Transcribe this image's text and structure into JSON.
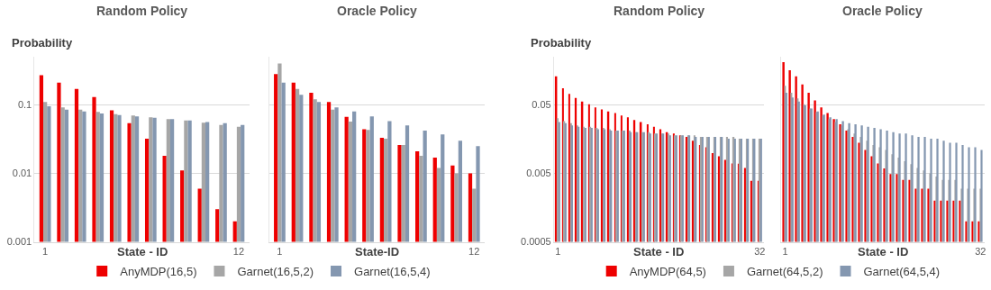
{
  "chart_data": [
    {
      "type": "bar",
      "title": "Random Policy",
      "xlabel": "State - ID",
      "ylabel": "Probability",
      "log": true,
      "grid": "y",
      "legend": "bottom",
      "categories": [
        "1",
        null,
        null,
        null,
        null,
        null,
        null,
        null,
        null,
        null,
        null,
        "12"
      ],
      "ylim": [
        0.001,
        0.5
      ],
      "yticks": [
        0.001,
        0.01,
        0.1
      ],
      "series": [
        {
          "name": "AnyMDP(16,5)",
          "color": "#ee0000",
          "values": [
            0.27,
            0.21,
            0.17,
            0.13,
            0.083,
            0.054,
            0.032,
            0.018,
            0.011,
            0.006,
            0.003,
            0.002
          ]
        },
        {
          "name": "Garnet(16,5,2)",
          "color": "#a6a6a6",
          "values": [
            0.11,
            0.092,
            0.085,
            0.079,
            0.073,
            0.07,
            0.066,
            0.062,
            0.059,
            0.055,
            0.051,
            0.048
          ]
        },
        {
          "name": "Garnet(16,5,4)",
          "color": "#8497b0",
          "values": [
            0.095,
            0.085,
            0.08,
            0.075,
            0.071,
            0.068,
            0.065,
            0.062,
            0.059,
            0.056,
            0.054,
            0.051
          ]
        }
      ]
    },
    {
      "type": "bar",
      "title": "Oracle Policy",
      "xlabel": "State-ID",
      "log": true,
      "grid": "y",
      "tick_labels": "x",
      "categories": [
        "1",
        null,
        null,
        null,
        null,
        null,
        null,
        null,
        null,
        null,
        null,
        "12"
      ],
      "ylim": [
        0.001,
        0.5
      ],
      "yticks": [
        0.001,
        0.01,
        0.1
      ],
      "series": [
        {
          "color": "#ee0000",
          "values": [
            0.28,
            0.21,
            0.15,
            0.11,
            0.067,
            0.044,
            0.033,
            0.026,
            0.021,
            0.017,
            0.013,
            0.01
          ]
        },
        {
          "color": "#a6a6a6",
          "values": [
            0.4,
            0.17,
            0.12,
            0.085,
            0.057,
            0.043,
            0.032,
            0.026,
            0.018,
            0.012,
            0.01,
            0.006
          ]
        },
        {
          "color": "#8497b0",
          "values": [
            0.21,
            0.14,
            0.11,
            0.092,
            0.08,
            0.068,
            0.058,
            0.05,
            0.042,
            0.037,
            0.03,
            0.025
          ]
        }
      ]
    },
    {
      "type": "bar",
      "title": "Random Policy",
      "xlabel": "State - ID",
      "ylabel": "Probability",
      "log": true,
      "grid": "y",
      "legend": "bottom",
      "categories": [
        "1",
        null,
        null,
        null,
        null,
        null,
        null,
        null,
        null,
        null,
        null,
        null,
        null,
        null,
        null,
        null,
        null,
        null,
        null,
        null,
        null,
        null,
        null,
        null,
        null,
        null,
        null,
        null,
        null,
        null,
        null,
        "32"
      ],
      "ylim": [
        0.0005,
        0.25
      ],
      "yticks": [
        0.0005,
        0.005,
        0.05
      ],
      "series": [
        {
          "name": "AnyMDP(64,5)",
          "color": "#ee0000",
          "values": [
            0.13,
            0.087,
            0.072,
            0.063,
            0.056,
            0.051,
            0.046,
            0.043,
            0.04,
            0.038,
            0.035,
            0.033,
            0.03,
            0.028,
            0.026,
            0.024,
            0.022,
            0.02,
            0.019,
            0.018,
            0.017,
            0.015,
            0.013,
            0.012,
            0.0099,
            0.0089,
            0.0079,
            0.007,
            0.0069,
            0.006,
            0.0039,
            0.0039
          ]
        },
        {
          "name": "Garnet(64,5,2)",
          "color": "#a6a6a6",
          "values": [
            0.032,
            0.029,
            0.027,
            0.025,
            0.024,
            0.024,
            0.023,
            0.023,
            0.022,
            0.021,
            0.021,
            0.021,
            0.02,
            0.02,
            0.02,
            0.019,
            0.019,
            0.019,
            0.018,
            0.018,
            0.018,
            0.018,
            0.017,
            0.017,
            0.017,
            0.017,
            0.017,
            0.017,
            0.016,
            0.016,
            0.016,
            0.016
          ]
        },
        {
          "name": "Garnet(64,5,4)",
          "color": "#8497b0",
          "values": [
            0.028,
            0.027,
            0.025,
            0.024,
            0.023,
            0.023,
            0.022,
            0.022,
            0.021,
            0.021,
            0.021,
            0.02,
            0.02,
            0.02,
            0.019,
            0.019,
            0.019,
            0.018,
            0.018,
            0.018,
            0.018,
            0.017,
            0.017,
            0.017,
            0.017,
            0.017,
            0.016,
            0.016,
            0.016,
            0.016,
            0.016,
            0.016
          ]
        }
      ]
    },
    {
      "type": "bar",
      "title": "Oracle Policy",
      "xlabel": "State - ID",
      "log": true,
      "grid": "y",
      "tick_labels": "x",
      "categories": [
        "1",
        null,
        null,
        null,
        null,
        null,
        null,
        null,
        null,
        null,
        null,
        null,
        null,
        null,
        null,
        null,
        null,
        null,
        null,
        null,
        null,
        null,
        null,
        null,
        null,
        null,
        null,
        null,
        null,
        null,
        null,
        "32"
      ],
      "ylim": [
        0.0005,
        0.25
      ],
      "yticks": [
        0.0005,
        0.005,
        0.05
      ],
      "series": [
        {
          "color": "#ee0000",
          "values": [
            0.21,
            0.16,
            0.13,
            0.099,
            0.075,
            0.058,
            0.046,
            0.038,
            0.031,
            0.026,
            0.021,
            0.017,
            0.014,
            0.011,
            0.0089,
            0.007,
            0.0059,
            0.0049,
            0.0049,
            0.004,
            0.004,
            0.003,
            0.003,
            0.003,
            0.002,
            0.002,
            0.002,
            0.002,
            0.002,
            0.001,
            0.001,
            0.001
          ]
        },
        {
          "color": "#a6a6a6",
          "values": [
            0.095,
            0.075,
            0.062,
            0.051,
            0.044,
            0.039,
            0.035,
            0.031,
            0.028,
            0.025,
            0.022,
            0.019,
            0.017,
            0.015,
            0.013,
            0.012,
            0.011,
            0.0095,
            0.0085,
            0.0075,
            0.0068,
            0.006,
            0.0055,
            0.005,
            0.0045,
            0.004,
            0.004,
            0.004,
            0.003,
            0.003,
            0.003,
            0.003
          ]
        },
        {
          "color": "#8497b0",
          "values": [
            0.075,
            0.064,
            0.056,
            0.049,
            0.044,
            0.04,
            0.036,
            0.033,
            0.031,
            0.029,
            0.027,
            0.026,
            0.025,
            0.024,
            0.023,
            0.022,
            0.021,
            0.02,
            0.019,
            0.019,
            0.018,
            0.017,
            0.017,
            0.016,
            0.016,
            0.015,
            0.014,
            0.014,
            0.013,
            0.012,
            0.012,
            0.011
          ]
        }
      ]
    }
  ]
}
